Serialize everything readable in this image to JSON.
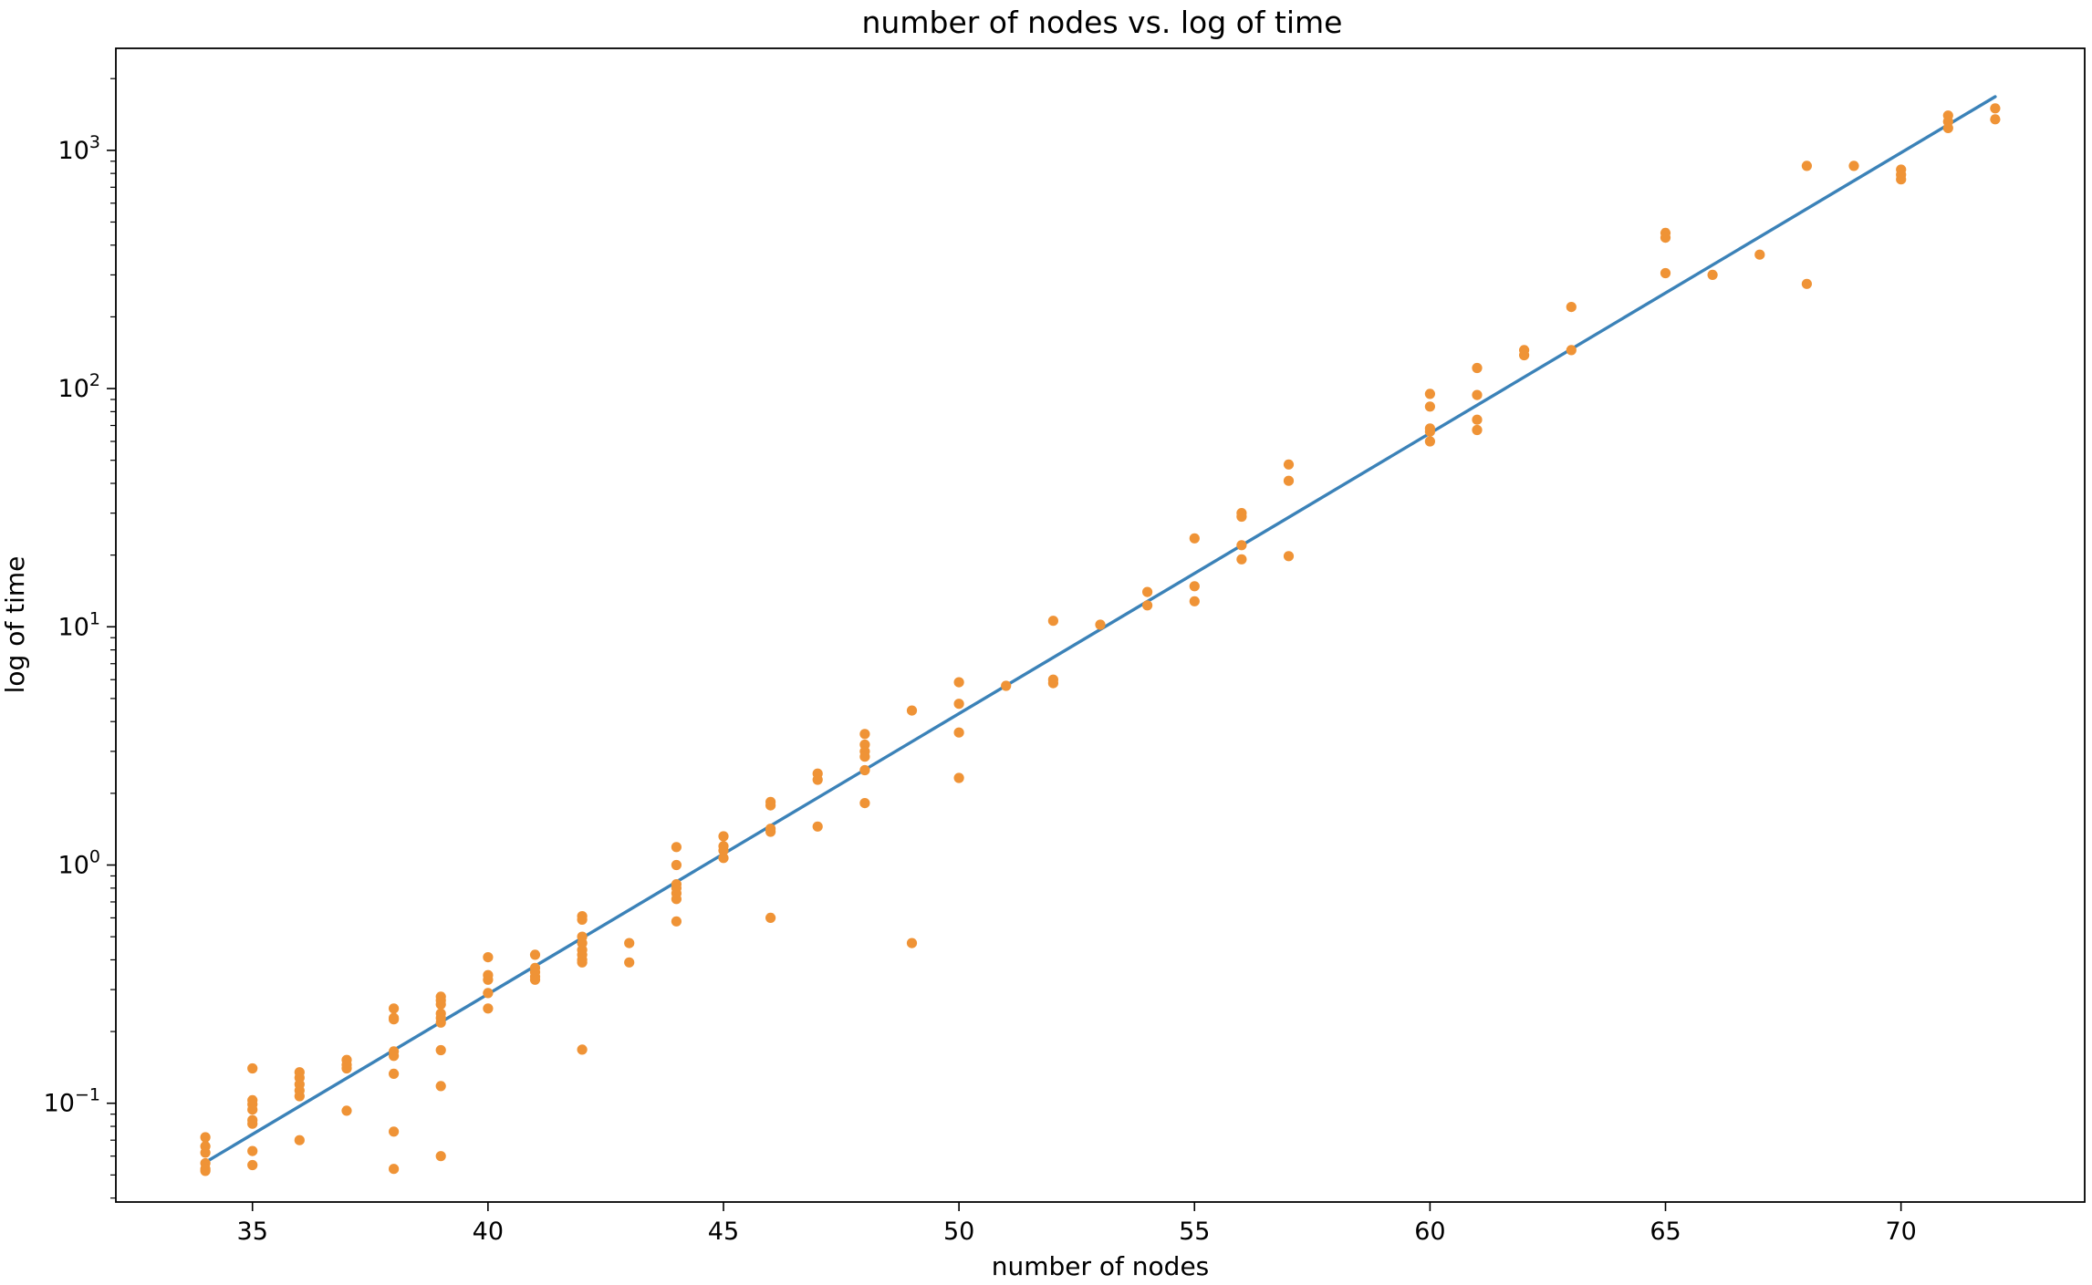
{
  "chart_data": {
    "type": "scatter",
    "title": "number of nodes vs. log of time",
    "xlabel": "number of nodes",
    "ylabel": "log of time",
    "xlim": [
      32.1,
      73.9
    ],
    "ylim": [
      0.0385,
      2680
    ],
    "yscale": "log",
    "grid": false,
    "xticks": [
      {
        "value": 35,
        "label": "35"
      },
      {
        "value": 40,
        "label": "40"
      },
      {
        "value": 45,
        "label": "45"
      },
      {
        "value": 50,
        "label": "50"
      },
      {
        "value": 55,
        "label": "55"
      },
      {
        "value": 60,
        "label": "60"
      },
      {
        "value": 65,
        "label": "65"
      },
      {
        "value": 70,
        "label": "70"
      }
    ],
    "yticks": [
      {
        "value": 0.1,
        "base": "10",
        "exp": "−1"
      },
      {
        "value": 1,
        "base": "10",
        "exp": "0"
      },
      {
        "value": 10,
        "base": "10",
        "exp": "1"
      },
      {
        "value": 100,
        "base": "10",
        "exp": "2"
      },
      {
        "value": 1000,
        "base": "10",
        "exp": "3"
      }
    ],
    "colors": {
      "line": "#3b82b8",
      "points": "#ef9336"
    },
    "fit_line": {
      "x": [
        34,
        72
      ],
      "y": [
        0.0565,
        1680
      ]
    },
    "points": [
      [
        34,
        0.072
      ],
      [
        34,
        0.066
      ],
      [
        34,
        0.062
      ],
      [
        34,
        0.056
      ],
      [
        34,
        0.053
      ],
      [
        34,
        0.052
      ],
      [
        35,
        0.14
      ],
      [
        35,
        0.103
      ],
      [
        35,
        0.099
      ],
      [
        35,
        0.094
      ],
      [
        35,
        0.085
      ],
      [
        35,
        0.082
      ],
      [
        35,
        0.063
      ],
      [
        35,
        0.055
      ],
      [
        36,
        0.135
      ],
      [
        36,
        0.128
      ],
      [
        36,
        0.12
      ],
      [
        36,
        0.113
      ],
      [
        36,
        0.107
      ],
      [
        36,
        0.07
      ],
      [
        37,
        0.152
      ],
      [
        37,
        0.145
      ],
      [
        37,
        0.14
      ],
      [
        37,
        0.093
      ],
      [
        38,
        0.25
      ],
      [
        38,
        0.228
      ],
      [
        38,
        0.225
      ],
      [
        38,
        0.165
      ],
      [
        38,
        0.158
      ],
      [
        38,
        0.133
      ],
      [
        38,
        0.076
      ],
      [
        38,
        0.053
      ],
      [
        39,
        0.28
      ],
      [
        39,
        0.27
      ],
      [
        39,
        0.26
      ],
      [
        39,
        0.238
      ],
      [
        39,
        0.228
      ],
      [
        39,
        0.218
      ],
      [
        39,
        0.167
      ],
      [
        39,
        0.118
      ],
      [
        39,
        0.06
      ],
      [
        40,
        0.41
      ],
      [
        40,
        0.345
      ],
      [
        40,
        0.33
      ],
      [
        40,
        0.29
      ],
      [
        40,
        0.25
      ],
      [
        41,
        0.42
      ],
      [
        41,
        0.37
      ],
      [
        41,
        0.355
      ],
      [
        41,
        0.34
      ],
      [
        41,
        0.33
      ],
      [
        42,
        0.61
      ],
      [
        42,
        0.59
      ],
      [
        42,
        0.5
      ],
      [
        42,
        0.47
      ],
      [
        42,
        0.44
      ],
      [
        42,
        0.42
      ],
      [
        42,
        0.4
      ],
      [
        42,
        0.39
      ],
      [
        42,
        0.168
      ],
      [
        43,
        0.47
      ],
      [
        43,
        0.39
      ],
      [
        44,
        1.19
      ],
      [
        44,
        1.0
      ],
      [
        44,
        0.83
      ],
      [
        44,
        0.8
      ],
      [
        44,
        0.76
      ],
      [
        44,
        0.72
      ],
      [
        44,
        0.58
      ],
      [
        45,
        1.32
      ],
      [
        45,
        1.2
      ],
      [
        45,
        1.15
      ],
      [
        45,
        1.07
      ],
      [
        46,
        1.84
      ],
      [
        46,
        1.78
      ],
      [
        46,
        1.42
      ],
      [
        46,
        1.38
      ],
      [
        46,
        0.6
      ],
      [
        47,
        2.42
      ],
      [
        47,
        2.28
      ],
      [
        47,
        1.45
      ],
      [
        48,
        3.55
      ],
      [
        48,
        3.2
      ],
      [
        48,
        3.0
      ],
      [
        48,
        2.85
      ],
      [
        48,
        2.5
      ],
      [
        48,
        1.82
      ],
      [
        49,
        4.45
      ],
      [
        49,
        0.47
      ],
      [
        50,
        5.85
      ],
      [
        50,
        4.75
      ],
      [
        50,
        3.6
      ],
      [
        50,
        2.32
      ],
      [
        51,
        5.65
      ],
      [
        52,
        10.6
      ],
      [
        52,
        6.0
      ],
      [
        52,
        5.8
      ],
      [
        53,
        10.2
      ],
      [
        54,
        14.0
      ],
      [
        54,
        12.3
      ],
      [
        55,
        23.5
      ],
      [
        55,
        14.8
      ],
      [
        55,
        12.8
      ],
      [
        56,
        30.0
      ],
      [
        56,
        29.0
      ],
      [
        56,
        22.0
      ],
      [
        56,
        19.2
      ],
      [
        57,
        48.0
      ],
      [
        57,
        41.0
      ],
      [
        57,
        19.8
      ],
      [
        60,
        95.0
      ],
      [
        60,
        84.0
      ],
      [
        60,
        68.0
      ],
      [
        60,
        66.0
      ],
      [
        60,
        60.0
      ],
      [
        61,
        122.0
      ],
      [
        61,
        94.0
      ],
      [
        61,
        74.0
      ],
      [
        61,
        67.0
      ],
      [
        62,
        145.0
      ],
      [
        62,
        138.0
      ],
      [
        63,
        220.0
      ],
      [
        63,
        145.0
      ],
      [
        65,
        450.0
      ],
      [
        65,
        430.0
      ],
      [
        65,
        305.0
      ],
      [
        66,
        300.0
      ],
      [
        67,
        365.0
      ],
      [
        68,
        860.0
      ],
      [
        68,
        275.0
      ],
      [
        69,
        860.0
      ],
      [
        70,
        830.0
      ],
      [
        70,
        790.0
      ],
      [
        70,
        755.0
      ],
      [
        71,
        1400.0
      ],
      [
        71,
        1320.0
      ],
      [
        71,
        1240.0
      ],
      [
        72,
        1500.0
      ],
      [
        72,
        1350.0
      ]
    ]
  }
}
